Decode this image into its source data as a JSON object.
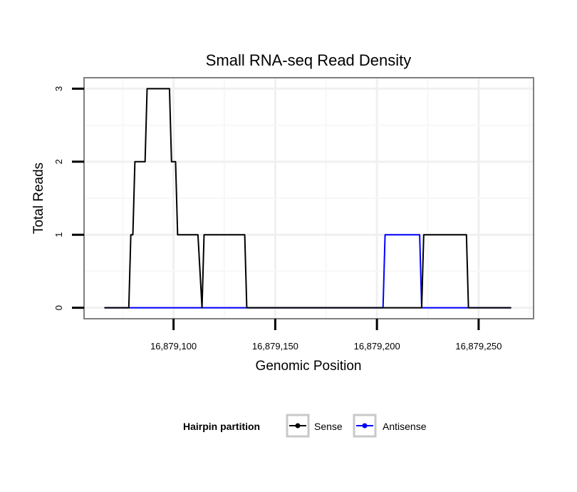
{
  "chart_data": {
    "type": "line",
    "title": "Small RNA-seq Read Density",
    "xlabel": "Genomic Position",
    "ylabel": "Total Reads",
    "xlim": [
      16879056,
      16879277
    ],
    "ylim": [
      -0.15,
      3.15
    ],
    "x_ticks": [
      16879100,
      16879150,
      16879200,
      16879250
    ],
    "x_tick_labels": [
      "16,879,100",
      "16,879,150",
      "16,879,200",
      "16,879,250"
    ],
    "y_ticks": [
      0,
      1,
      2,
      3
    ],
    "y_tick_labels": [
      "0",
      "1",
      "2",
      "3"
    ],
    "grid": true,
    "legend": {
      "title": "Hairpin partition",
      "position": "bottom",
      "entries": [
        "Sense",
        "Antisense"
      ]
    },
    "series": [
      {
        "name": "Sense",
        "color": "#000000",
        "x": [
          16879066,
          16879078,
          16879079,
          16879080,
          16879081,
          16879082,
          16879086,
          16879087,
          16879088,
          16879097,
          16879098,
          16879099,
          16879101,
          16879102,
          16879104,
          16879112,
          16879114,
          16879115,
          16879116,
          16879135,
          16879136,
          16879222,
          16879223,
          16879244,
          16879245,
          16879266
        ],
        "y": [
          0,
          0,
          1,
          1,
          2,
          2,
          2,
          3,
          3,
          3,
          3,
          2,
          2,
          1,
          1,
          1,
          0,
          1,
          1,
          1,
          0,
          0,
          1,
          1,
          0,
          0
        ]
      },
      {
        "name": "Antisense",
        "color": "#0000ff",
        "x": [
          16879066,
          16879203,
          16879204,
          16879221,
          16879222,
          16879266
        ],
        "y": [
          0,
          0,
          1,
          1,
          0,
          0
        ]
      }
    ]
  }
}
